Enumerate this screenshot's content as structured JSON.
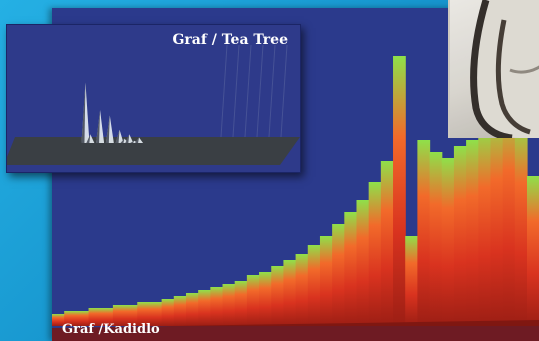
{
  "labels": {
    "inset_title": "Graf / Tea Tree",
    "main_title": "Graf /Kadidlo"
  },
  "colors": {
    "background": "#1da3d9",
    "panel": "#2b3a8c",
    "inset_peak": "#e8eef4",
    "spectrum_low": "#d9331f",
    "spectrum_high": "#8fe04a"
  },
  "chart_data": [
    {
      "type": "area",
      "series": [
        {
          "values": [
            0,
            0,
            0,
            0,
            0,
            0,
            0,
            0,
            0,
            0,
            0,
            0,
            0.55,
            0.08,
            0,
            0.3,
            0,
            0.25,
            0,
            0.12,
            0.04,
            0.08,
            0.02,
            0.05,
            0,
            0,
            0,
            0,
            0,
            0,
            0,
            0,
            0,
            0,
            0,
            0,
            0,
            0,
            0,
            0
          ]
        }
      ]
    },
    {
      "type": "area",
      "series": [
        {
          "values": [
            0.04,
            0.05,
            0.05,
            0.06,
            0.06,
            0.07,
            0.07,
            0.08,
            0.08,
            0.09,
            0.1,
            0.11,
            0.12,
            0.13,
            0.14,
            0.15,
            0.17,
            0.18,
            0.2,
            0.22,
            0.24,
            0.27,
            0.3,
            0.34,
            0.38,
            0.42,
            0.48,
            0.55,
            0.9,
            0.3,
            0.62,
            0.58,
            0.56,
            0.6,
            0.62,
            0.66,
            0.7,
            0.74,
            0.68,
            0.5
          ]
        }
      ]
    }
  ]
}
